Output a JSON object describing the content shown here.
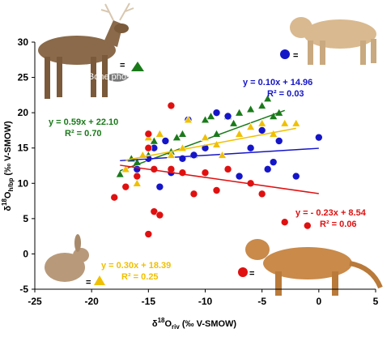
{
  "chart_data": {
    "type": "scatter",
    "xlim": [
      -25,
      5
    ],
    "xticks": [
      -25,
      -20,
      -15,
      -10,
      -5,
      0,
      5
    ],
    "ylim": [
      -5,
      30
    ],
    "yticks": [
      -5,
      0,
      5,
      10,
      15,
      20,
      25,
      30
    ],
    "xlabel": {
      "delta": "δ",
      "sup": "18",
      "main": "O",
      "sub": "riv",
      "unit": " (‰ V-SMOW)"
    },
    "ylabel": {
      "delta": "δ",
      "sup": "18",
      "main": "O",
      "sub": "h/bp",
      "unit": " (‰ V-SMOW)"
    },
    "annotation": "Bone phosphate",
    "series": [
      {
        "color": "#1a7a1a",
        "marker": "triangle",
        "x": [
          -17.5,
          -16,
          -15,
          -14.5,
          -12,
          -10,
          -9,
          -8,
          -7,
          -6,
          -5,
          -4,
          -3.5,
          -13,
          -11,
          -16.5,
          -12.5,
          -7.5,
          -4.5,
          -9.5
        ],
        "y": [
          11.3,
          13,
          14,
          16,
          17,
          19,
          17,
          19.5,
          20,
          20.5,
          21,
          19.5,
          20,
          14.5,
          14,
          13.5,
          16.5,
          18.5,
          22,
          19.5
        ],
        "trend": {
          "slope": 0.59,
          "intercept": 22.1,
          "xrange": [
            -17.5,
            -3
          ]
        },
        "equation": "y = 0.59x + 22.10",
        "r2": "R² = 0.70"
      },
      {
        "color": "#1515c8",
        "marker": "circle",
        "x": [
          -16,
          -15,
          -14.5,
          -13.5,
          -13,
          -12,
          -11,
          -10,
          -9,
          -8,
          -7,
          -6,
          -5,
          -4,
          -3.5,
          -2,
          0,
          -4.5,
          -11.5,
          -14
        ],
        "y": [
          12,
          13.5,
          15,
          16,
          11.5,
          13.5,
          14,
          15,
          20,
          19.5,
          11,
          15,
          17.5,
          13,
          16,
          11,
          16.5,
          12,
          19,
          9.5
        ],
        "trend": {
          "slope": 0.1,
          "intercept": 14.96,
          "xrange": [
            -17.5,
            0
          ]
        },
        "equation": "y = 0.10x + 14.96",
        "r2": "R² = 0.03"
      },
      {
        "color": "#f0c000",
        "marker": "triangle",
        "x": [
          -17,
          -16,
          -15,
          -14,
          -13,
          -12,
          -11.5,
          -10,
          -9,
          -7,
          -6,
          -5,
          -4,
          -3,
          -2,
          -15.5,
          -8.5
        ],
        "y": [
          12,
          10,
          16.5,
          17,
          14,
          15,
          19,
          16.5,
          15.5,
          17,
          18,
          18.5,
          17,
          18.5,
          18.5,
          14,
          14
        ],
        "trend": {
          "slope": 0.3,
          "intercept": 18.39,
          "xrange": [
            -17,
            -2
          ]
        },
        "equation": "y = 0.30x + 18.39",
        "r2": "R² = 0.25"
      },
      {
        "color": "#e01010",
        "marker": "circle",
        "x": [
          -18,
          -17,
          -16,
          -15,
          -14.5,
          -14,
          -15,
          -13,
          -12,
          -11,
          -10,
          -9,
          -8,
          -6,
          -5,
          -3,
          -1,
          -14.5,
          -13,
          -15
        ],
        "y": [
          8,
          9.5,
          11,
          2.8,
          6,
          5.5,
          17,
          21,
          11.5,
          8.5,
          11.5,
          9,
          12,
          10,
          8.5,
          4.5,
          4,
          12,
          12,
          15
        ],
        "trend": {
          "slope": -0.23,
          "intercept": 8.54,
          "xrange": [
            -17.5,
            0
          ]
        },
        "equation": "y = - 0.23x + 8.54",
        "r2": "R² = 0.06"
      }
    ]
  }
}
